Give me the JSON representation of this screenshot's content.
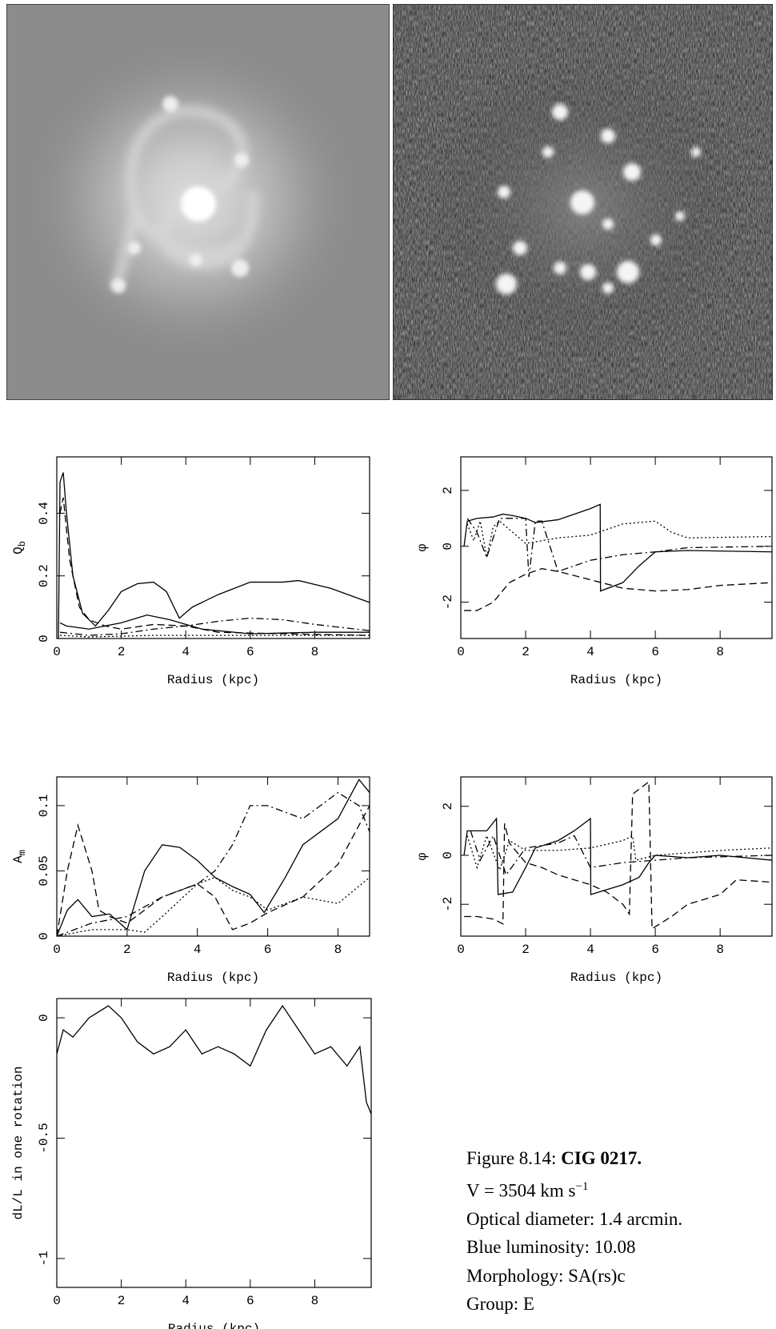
{
  "chart_data": [
    {
      "type": "line",
      "xlabel": "Radius (kpc)",
      "ylabel": "Q",
      "ylabel_sub": "b",
      "xlim": [
        0,
        9.7
      ],
      "ylim": [
        0,
        0.58
      ],
      "xticks": [
        0,
        2,
        4,
        6,
        8
      ],
      "yticks": [
        0,
        0.2,
        0.4
      ],
      "series": [
        {
          "color": "#000000",
          "dash": "solid",
          "x": [
            0.05,
            0.1,
            0.2,
            0.3,
            0.5,
            0.8,
            1.2,
            1.6,
            2,
            2.5,
            3,
            3.4,
            3.8,
            4.2,
            5,
            6,
            7,
            7.5,
            8.5,
            9.7
          ],
          "values": [
            0,
            0.5,
            0.53,
            0.4,
            0.2,
            0.08,
            0.04,
            0.09,
            0.15,
            0.175,
            0.18,
            0.15,
            0.065,
            0.1,
            0.14,
            0.18,
            0.18,
            0.185,
            0.16,
            0.115
          ]
        },
        {
          "color": "#000000",
          "dash": "solid",
          "x": [
            0.1,
            0.3,
            1,
            2,
            2.8,
            3.5,
            4.5,
            6,
            8,
            9.7
          ],
          "values": [
            0.05,
            0.04,
            0.03,
            0.05,
            0.075,
            0.06,
            0.03,
            0.015,
            0.02,
            0.02
          ]
        },
        {
          "color": "#000000",
          "dash": "dashed",
          "x": [
            0.1,
            0.2,
            0.4,
            0.7,
            1,
            1.5,
            2,
            3,
            4,
            5,
            7,
            9.7
          ],
          "values": [
            0.4,
            0.45,
            0.25,
            0.1,
            0.06,
            0.04,
            0.03,
            0.045,
            0.04,
            0.02,
            0.015,
            0.01
          ]
        },
        {
          "color": "#000000",
          "dash": "dashdot",
          "x": [
            0.1,
            1,
            2,
            3,
            4,
            5,
            6,
            7,
            8,
            9.7
          ],
          "values": [
            0.02,
            0.01,
            0.015,
            0.03,
            0.04,
            0.055,
            0.065,
            0.06,
            0.045,
            0.025
          ]
        },
        {
          "color": "#000000",
          "dash": "dotted",
          "x": [
            0.1,
            1,
            3,
            5,
            7,
            9.7
          ],
          "values": [
            0.01,
            0.005,
            0.01,
            0.01,
            0.01,
            0.01
          ]
        }
      ]
    },
    {
      "type": "line",
      "xlabel": "Radius (kpc)",
      "ylabel": "φ",
      "xlim": [
        0,
        9.6
      ],
      "ylim": [
        -3.3,
        3.2
      ],
      "xticks": [
        0,
        2,
        4,
        6,
        8
      ],
      "yticks": [
        -2,
        0,
        2
      ],
      "series": [
        {
          "color": "#000000",
          "dash": "solid",
          "x": [
            0.1,
            0.2,
            0.5,
            1,
            1.3,
            1.6,
            2,
            2.3,
            3,
            4,
            4.3,
            4.31,
            5,
            5.5,
            6,
            7,
            9.6
          ],
          "values": [
            0,
            0.9,
            1,
            1.05,
            1.15,
            1.1,
            1,
            0.85,
            0.95,
            1.35,
            1.5,
            -1.6,
            -1.3,
            -0.7,
            -0.2,
            -0.15,
            -0.2
          ]
        },
        {
          "color": "#000000",
          "dash": "dotted",
          "x": [
            0.2,
            0.4,
            0.6,
            0.8,
            1,
            1.2,
            2,
            3,
            4,
            5,
            6,
            6.5,
            7,
            9.6
          ],
          "values": [
            0.8,
            0.2,
            0.9,
            -0.4,
            0.7,
            0.9,
            0.1,
            0.3,
            0.4,
            0.8,
            0.9,
            0.5,
            0.3,
            0.35
          ]
        },
        {
          "color": "#000000",
          "dash": "dashdot",
          "x": [
            0.2,
            0.5,
            0.8,
            1.2,
            2,
            2.1,
            2.3,
            2.5,
            3,
            4,
            5,
            6,
            7,
            9.6
          ],
          "values": [
            1,
            0.5,
            -0.4,
            1,
            1,
            -1.1,
            0.9,
            0.9,
            -0.9,
            -0.5,
            -0.3,
            -0.2,
            -0.05,
            0
          ]
        },
        {
          "color": "#000000",
          "dash": "dashed",
          "x": [
            0.1,
            0.5,
            1,
            1.5,
            2,
            2.5,
            3,
            4,
            5,
            6,
            7,
            8,
            9.6
          ],
          "values": [
            -2.3,
            -2.3,
            -2,
            -1.3,
            -1,
            -0.8,
            -0.9,
            -1.2,
            -1.5,
            -1.6,
            -1.55,
            -1.4,
            -1.3
          ]
        }
      ]
    },
    {
      "type": "line",
      "xlabel": "Radius (kpc)",
      "ylabel": "A",
      "ylabel_sub": "m",
      "xlim": [
        0,
        8.9
      ],
      "ylim": [
        0,
        0.122
      ],
      "xticks": [
        0,
        2,
        4,
        6,
        8
      ],
      "yticks": [
        0,
        0.05,
        0.1
      ],
      "series": [
        {
          "color": "#000000",
          "dash": "solid",
          "x": [
            0,
            0.3,
            0.6,
            1,
            1.5,
            2,
            2.5,
            3,
            3.5,
            4,
            4.5,
            5,
            5.5,
            5.9,
            6.5,
            7,
            8,
            8.6,
            8.9
          ],
          "values": [
            0,
            0.02,
            0.028,
            0.015,
            0.017,
            0.005,
            0.05,
            0.07,
            0.068,
            0.058,
            0.045,
            0.038,
            0.032,
            0.018,
            0.045,
            0.07,
            0.09,
            0.12,
            0.11
          ]
        },
        {
          "color": "#000000",
          "dash": "dashed",
          "x": [
            0,
            0.3,
            0.6,
            1,
            1.2,
            1.5,
            2,
            3,
            4,
            4.5,
            5,
            5.5,
            6,
            7,
            8,
            8.9
          ],
          "values": [
            0,
            0.05,
            0.085,
            0.05,
            0.02,
            0.015,
            0.01,
            0.03,
            0.04,
            0.03,
            0.005,
            0.01,
            0.018,
            0.03,
            0.055,
            0.1
          ]
        },
        {
          "color": "#000000",
          "dash": "dashdot",
          "x": [
            0,
            1,
            2,
            3,
            4,
            4.5,
            5,
            5.5,
            6,
            7,
            8,
            8.6,
            8.9
          ],
          "values": [
            0,
            0.01,
            0.015,
            0.03,
            0.04,
            0.05,
            0.07,
            0.1,
            0.1,
            0.09,
            0.11,
            0.1,
            0.08
          ]
        },
        {
          "color": "#000000",
          "dash": "dotted",
          "x": [
            0,
            1,
            2,
            2.5,
            3,
            4,
            4.5,
            5,
            5.5,
            6,
            7,
            8,
            8.9
          ],
          "values": [
            0,
            0.005,
            0.005,
            0.003,
            0.015,
            0.04,
            0.045,
            0.035,
            0.03,
            0.02,
            0.03,
            0.025,
            0.045
          ]
        }
      ]
    },
    {
      "type": "line",
      "xlabel": "Radius (kpc)",
      "ylabel": "φ",
      "xlim": [
        0,
        9.6
      ],
      "ylim": [
        -3.3,
        3.2
      ],
      "xticks": [
        0,
        2,
        4,
        6,
        8
      ],
      "yticks": [
        -2,
        0,
        2
      ],
      "series": [
        {
          "color": "#000000",
          "dash": "solid",
          "x": [
            0.1,
            0.2,
            0.8,
            1.1,
            1.15,
            1.6,
            2,
            2.3,
            3,
            3.5,
            4,
            4.01,
            5,
            5.5,
            5.8,
            6,
            7,
            8,
            9.6
          ],
          "values": [
            0,
            1,
            1,
            1.5,
            -1.6,
            -1.5,
            -0.5,
            0.3,
            0.6,
            1,
            1.5,
            -1.6,
            -1.2,
            -0.9,
            -0.3,
            0,
            -0.1,
            0,
            -0.2
          ]
        },
        {
          "color": "#000000",
          "dash": "dotted",
          "x": [
            0.2,
            0.5,
            0.8,
            1.2,
            1.5,
            2,
            3,
            4,
            5,
            5.3,
            5.4,
            6,
            7,
            8,
            9.6
          ],
          "values": [
            0.8,
            -0.5,
            0.8,
            -0.6,
            0.6,
            0.2,
            0.2,
            0.3,
            0.6,
            0.8,
            -0.2,
            0,
            0.1,
            0.2,
            0.3
          ]
        },
        {
          "color": "#000000",
          "dash": "dashdot",
          "x": [
            0.3,
            0.6,
            1,
            1.4,
            2,
            3,
            3.5,
            4,
            5,
            6,
            7,
            9.6
          ],
          "values": [
            1,
            -0.2,
            0.8,
            -0.8,
            0.3,
            0.5,
            0.8,
            -0.5,
            -0.3,
            -0.2,
            -0.1,
            0
          ]
        },
        {
          "color": "#000000",
          "dash": "dashed",
          "x": [
            0.1,
            0.5,
            1,
            1.3,
            1.35,
            1.5,
            2,
            2.5,
            3,
            3.5,
            4,
            4.5,
            5,
            5.2,
            5.3,
            5.8,
            5.9,
            6.5,
            7,
            8,
            8.5,
            9.6
          ],
          "values": [
            -2.5,
            -2.5,
            -2.6,
            -2.8,
            1.3,
            0.5,
            -0.3,
            -0.5,
            -0.8,
            -1,
            -1.2,
            -1.5,
            -2,
            -2.4,
            2.5,
            3,
            -3,
            -2.5,
            -2,
            -1.6,
            -1,
            -1.1
          ]
        }
      ]
    },
    {
      "type": "line",
      "xlabel": "Radius (kpc)",
      "ylabel": "dL/L in one rotation",
      "xlim": [
        0,
        9.75
      ],
      "ylim": [
        -1.12,
        0.08
      ],
      "xticks": [
        0,
        2,
        4,
        6,
        8
      ],
      "yticks": [
        -1,
        -0.5,
        0
      ],
      "series": [
        {
          "color": "#000000",
          "dash": "solid",
          "x": [
            0,
            0.2,
            0.5,
            1,
            1.6,
            2,
            2.5,
            3,
            3.5,
            4,
            4.5,
            5,
            5.5,
            6,
            6.5,
            7,
            7.5,
            8,
            8.5,
            9,
            9.4,
            9.6,
            9.75
          ],
          "values": [
            -0.15,
            -0.05,
            -0.08,
            0,
            0.05,
            0,
            -0.1,
            -0.15,
            -0.12,
            -0.05,
            -0.15,
            -0.12,
            -0.15,
            -0.2,
            -0.05,
            0.05,
            -0.05,
            -0.15,
            -0.12,
            -0.2,
            -0.12,
            -0.35,
            -0.4
          ]
        }
      ]
    }
  ],
  "caption": {
    "figure_label": "Figure 8.14:",
    "object": "CIG 0217.",
    "velocity": "V = 3504 km s",
    "velocity_exp": "−1",
    "lines": [
      "Optical diameter: 1.4 arcmin.",
      "Blue luminosity: 10.08",
      "Morphology: SA(rs)c",
      "Group: E"
    ]
  }
}
